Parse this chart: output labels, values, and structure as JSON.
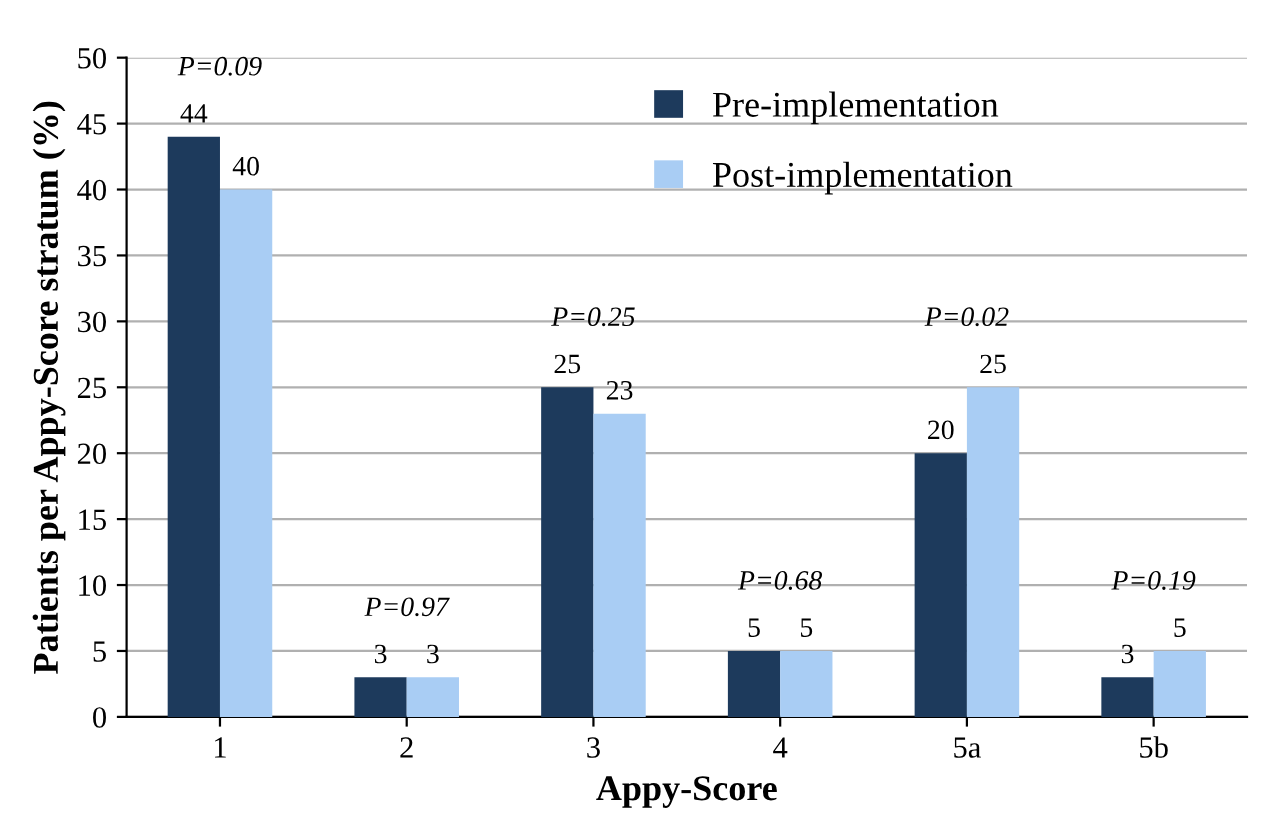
{
  "chart_data": {
    "type": "bar",
    "xlabel": "Appy-Score",
    "ylabel": "Patients per Appy-Score stratum (%)",
    "categories": [
      "1",
      "2",
      "3",
      "4",
      "5a",
      "5b"
    ],
    "series": [
      {
        "name": "Pre-implementation",
        "color": "#1d3a5c",
        "values": [
          44,
          3,
          25,
          5,
          20,
          3
        ]
      },
      {
        "name": "Post-implementation",
        "color": "#a9cdf4",
        "values": [
          40,
          3,
          23,
          5,
          25,
          5
        ]
      }
    ],
    "ylim": [
      0,
      50
    ],
    "yticks": [
      0,
      5,
      10,
      15,
      20,
      25,
      30,
      35,
      40,
      45,
      50
    ],
    "grid": "y",
    "legend": "top right",
    "data_labels": true,
    "annotations": [
      "P=0.09",
      "P=0.97",
      "P=0.25",
      "P=0.68",
      "P=0.02",
      "P=0.19"
    ]
  }
}
